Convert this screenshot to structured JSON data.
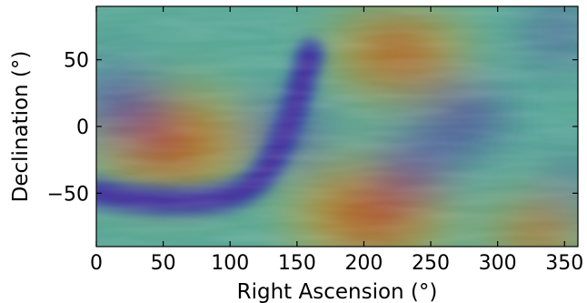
{
  "chart_data": {
    "type": "heatmap",
    "title": "",
    "xlabel": "Right Ascension (°)",
    "ylabel": "Declination (°)",
    "xlim": [
      0,
      360
    ],
    "ylim": [
      -90,
      90
    ],
    "xticks": [
      0,
      50,
      100,
      150,
      200,
      250,
      300,
      350
    ],
    "xtick_labels": [
      "0",
      "50",
      "100",
      "150",
      "200",
      "250",
      "300",
      "350"
    ],
    "yticks": [
      -50,
      0,
      50
    ],
    "ytick_labels": [
      "−50",
      "0",
      "50"
    ],
    "grid": false,
    "legend": "none",
    "colormap": "jet",
    "colors": {
      "high": "#b5341a",
      "mid_high": "#b9a83a",
      "mid": "#5aa898",
      "low": "#2e3fa8",
      "lowest": "#6b1a8a"
    },
    "features": [
      {
        "kind": "high",
        "ra": 55,
        "dec": -12,
        "strength": 1.0
      },
      {
        "kind": "high",
        "ra": 205,
        "dec": -65,
        "strength": 1.0
      },
      {
        "kind": "high",
        "ra": 225,
        "dec": 55,
        "strength": 0.85
      },
      {
        "kind": "high",
        "ra": 330,
        "dec": -80,
        "strength": 0.6
      },
      {
        "kind": "low",
        "ra": 18,
        "dec": 15,
        "strength": 1.0
      },
      {
        "kind": "low",
        "ra": 275,
        "dec": 8,
        "strength": 0.95
      },
      {
        "kind": "low",
        "ra": 240,
        "dec": -30,
        "strength": 0.9
      },
      {
        "kind": "low",
        "ra": 140,
        "dec": -5,
        "strength": 0.9
      },
      {
        "kind": "low",
        "ra": 345,
        "dec": 70,
        "strength": 0.7
      },
      {
        "kind": "low",
        "ra": 355,
        "dec": -45,
        "strength": 0.55
      }
    ],
    "low_band": [
      [
        0,
        -50
      ],
      [
        30,
        -55
      ],
      [
        70,
        -57
      ],
      [
        105,
        -52
      ],
      [
        125,
        -38
      ],
      [
        140,
        -10
      ],
      [
        150,
        20
      ],
      [
        160,
        55
      ]
    ]
  }
}
